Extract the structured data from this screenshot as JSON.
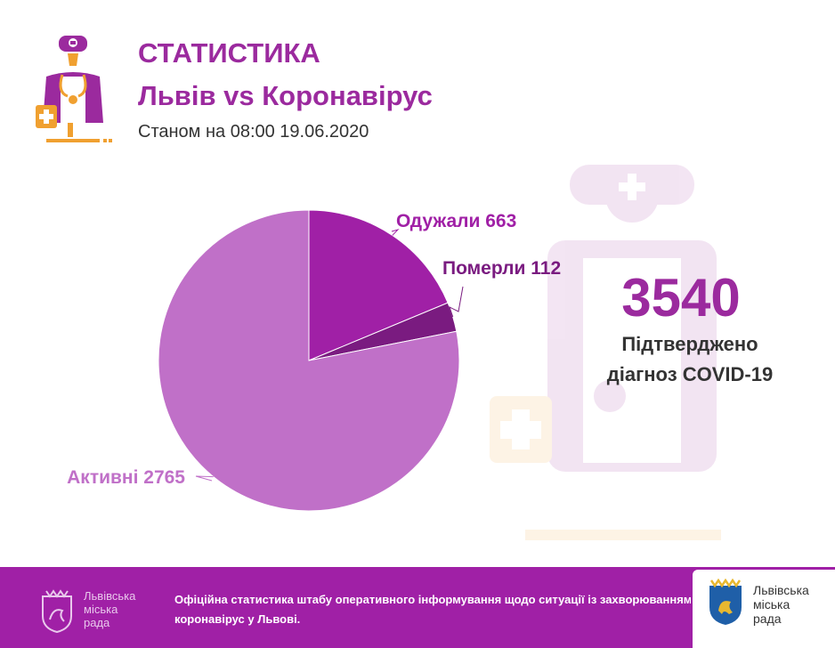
{
  "header": {
    "title": "СТАТИСТИКА",
    "subtitle": "Львів vs Коронавірус",
    "as_of": "Станом на 08:00 19.06.2020"
  },
  "summary": {
    "total": "3540",
    "label_line1": "Підтверджено",
    "label_line2": "діагноз COVID-19"
  },
  "chart_data": {
    "type": "pie",
    "slices": [
      {
        "name": "Одужали",
        "value": 663,
        "label": "Одужали 663",
        "color": "#a020a6"
      },
      {
        "name": "Померли",
        "value": 112,
        "label": "Померли 112",
        "color": "#7a1b80"
      },
      {
        "name": "Активні",
        "value": 2765,
        "label": "Активні 2765",
        "color": "#c070c8"
      }
    ]
  },
  "footer": {
    "left_logo_text": [
      "Львівська",
      "міська",
      "рада"
    ],
    "note_line1": "Офіційна статистика штабу оперативного інформування щодо ситуації із захворюванням на",
    "note_line2": "коронавірус у Львові.",
    "right_logo_text": [
      "Львівська",
      "міська",
      "рада"
    ]
  },
  "colors": {
    "accent": "#9b2a9e",
    "footer_bg": "#a020a6",
    "orange": "#f0a030"
  },
  "icons": [
    "doctor-illustration-icon",
    "city-council-crest-icon"
  ]
}
